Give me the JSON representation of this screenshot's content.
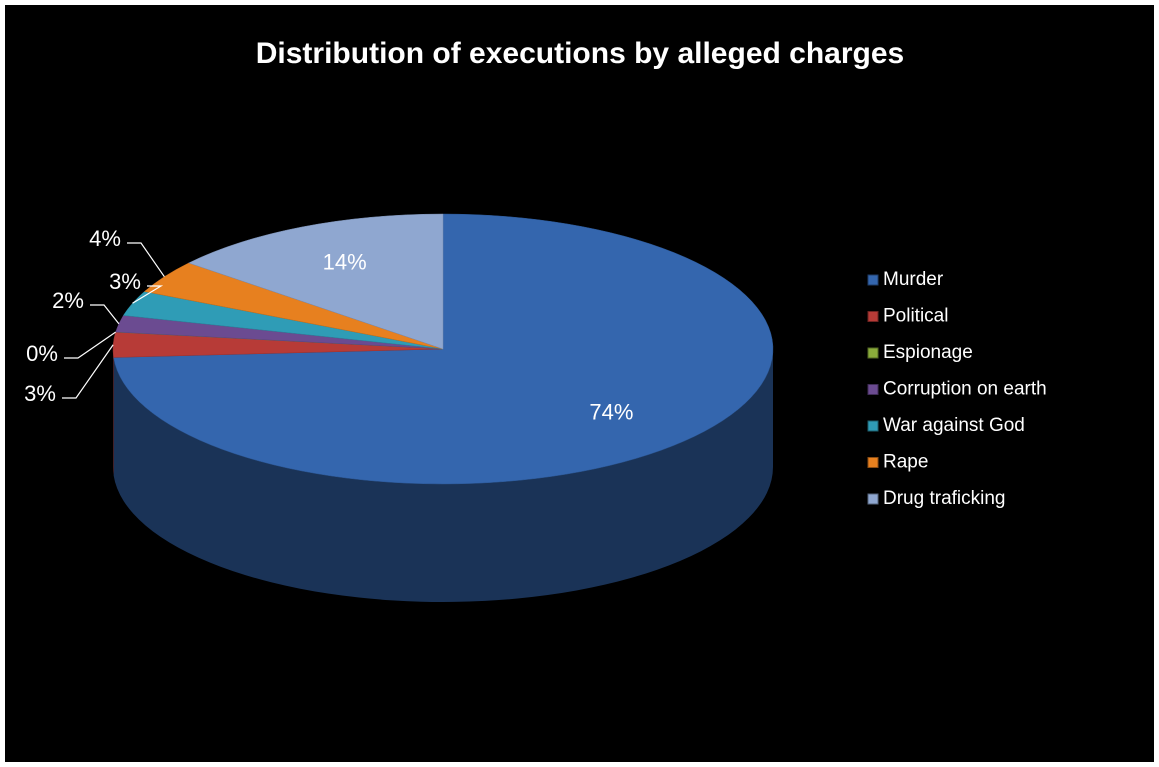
{
  "chart_data": {
    "type": "pie",
    "title": "Distribution of executions by alleged charges",
    "categories": [
      "Murder",
      "Political",
      "Espionage",
      "Corruption on  earth",
      "War against God",
      "Rape",
      "Drug traficking"
    ],
    "values": [
      74,
      3,
      0,
      2,
      3,
      4,
      14
    ],
    "value_labels": [
      "74%",
      "3%",
      "0%",
      "2%",
      "3%",
      "4%",
      "14%"
    ],
    "colors": [
      "#3466ae",
      "#b73b37",
      "#8aab3b",
      "#6b4b91",
      "#2f9cb6",
      "#e7801f",
      "#8fa7d0"
    ],
    "legend": "right"
  }
}
